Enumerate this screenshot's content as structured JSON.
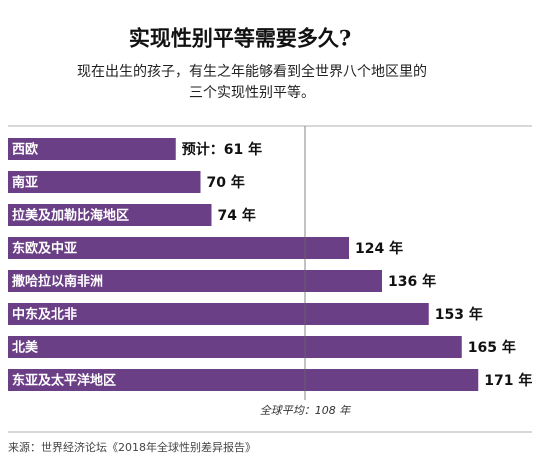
{
  "chart_data": {
    "type": "bar",
    "orientation": "horizontal",
    "title": "实现性别平等需要多久?",
    "subtitle": [
      "现在出生的孩子，有生之年能够看到全世界八个地区里的",
      "三个实现性别平等。"
    ],
    "categories": [
      "西欧",
      "南亚",
      "拉美及加勒比海地区",
      "东欧及中亚",
      "撒哈拉以南非洲",
      "中东及北非",
      "北美",
      "东亚及太平洋地区"
    ],
    "values": [
      61,
      70,
      74,
      124,
      136,
      153,
      165,
      171
    ],
    "value_labels": [
      "预计：61 年",
      "70 年",
      "74 年",
      "124 年",
      "136 年",
      "153 年",
      "165 年",
      "171 年"
    ],
    "color": "#6b3f86",
    "reference_line": {
      "value": 108,
      "label": "全球平均：108 年"
    },
    "source": "来源：世界经济论坛《2018年全球性别差异报告》"
  }
}
